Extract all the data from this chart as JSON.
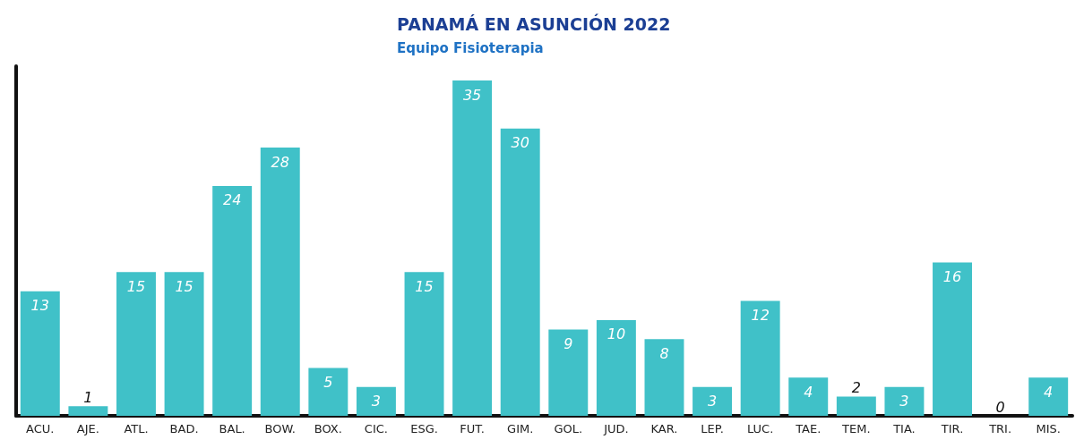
{
  "chart_data": {
    "type": "bar",
    "title": "PANAMÁ EN ASUNCIÓN 2022",
    "subtitle": "Equipo Fisioterapia",
    "categories": [
      "ACU.",
      "AJE.",
      "ATL.",
      "BAD.",
      "BAL.",
      "BOW.",
      "BOX.",
      "CIC.",
      "ESG.",
      "FUT.",
      "GIM.",
      "GOL.",
      "JUD.",
      "KAR.",
      "LEP.",
      "LUC.",
      "TAE.",
      "TEM.",
      "TIA.",
      "TIR.",
      "TRI.",
      "MIS."
    ],
    "values": [
      13,
      1,
      15,
      15,
      24,
      28,
      5,
      3,
      15,
      35,
      30,
      9,
      10,
      8,
      3,
      12,
      4,
      2,
      3,
      16,
      0,
      4
    ],
    "color": "#40c1c8",
    "ylim": [
      0,
      36.5
    ],
    "data_labels": true,
    "tick_labels": "x",
    "grid": false
  }
}
